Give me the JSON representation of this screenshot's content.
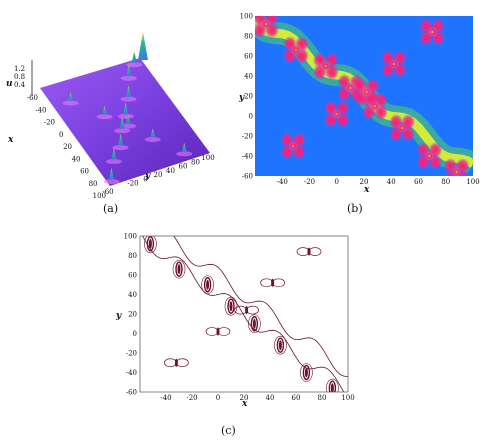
{
  "captions": {
    "a": "(a)",
    "b": "(b)",
    "c": "(c)"
  },
  "panel_a": {
    "axis_labels": {
      "u": "u",
      "x": "x",
      "y": "y"
    },
    "u_ticks": [
      "1.2",
      "0.8",
      "0.4"
    ],
    "x_ticks": [
      "-60",
      "-40",
      "-20",
      "0",
      "20",
      "40",
      "60",
      "80",
      "100"
    ],
    "y_ticks": [
      "-60",
      "-20",
      "0",
      "20",
      "40",
      "60",
      "80",
      "100"
    ],
    "colors": {
      "surface": "#7a3fe0",
      "surface_dark": "#5a26b8",
      "peak": "#2bb39b",
      "tip": "#f4d21f"
    }
  },
  "panel_b": {
    "axis_labels": {
      "x": "x",
      "y": "y"
    },
    "x_ticks": [
      "-40",
      "-20",
      "0",
      "20",
      "40",
      "60",
      "80",
      "100"
    ],
    "y_ticks": [
      "100",
      "80",
      "60",
      "40",
      "20",
      "0",
      "-20",
      "-40",
      "-60"
    ],
    "colors": {
      "background": "#1e74ff",
      "band": "#e8f02a",
      "hot": "#ff1f5a"
    }
  },
  "panel_c": {
    "axis_labels": {
      "x": "x",
      "y": "y"
    },
    "x_ticks": [
      "-40",
      "-20",
      "0",
      "20",
      "40",
      "60",
      "80",
      "100"
    ],
    "y_ticks": [
      "100",
      "80",
      "60",
      "40",
      "20",
      "0",
      "-20",
      "-40",
      "-60"
    ],
    "colors": {
      "contour": "#6b1030"
    }
  },
  "chart_data": {
    "type": "scatter",
    "title": "",
    "xlabel": "x",
    "ylabel": "y",
    "xlim": [
      -60,
      100
    ],
    "ylim": [
      -60,
      100
    ],
    "series": [
      {
        "points": [
          [
            -52,
            92
          ],
          [
            -30,
            66
          ],
          [
            -8,
            50
          ],
          [
            10,
            28
          ],
          [
            28,
            10
          ],
          [
            48,
            -12
          ],
          [
            68,
            -40
          ],
          [
            88,
            -56
          ],
          [
            70,
            84
          ],
          [
            42,
            52
          ],
          [
            22,
            24
          ],
          [
            0,
            2
          ],
          [
            -32,
            -30
          ]
        ]
      }
    ]
  }
}
